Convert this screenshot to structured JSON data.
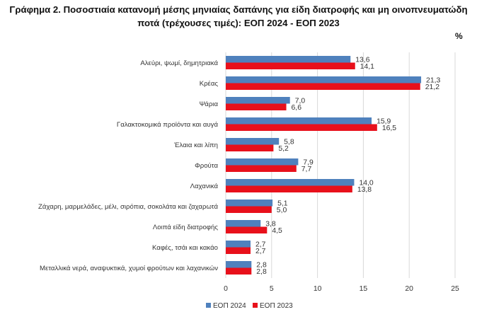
{
  "title_line1": "Γράφημα 2. Ποσοστιαία κατανομή μέσης μηνιαίας δαπάνης για είδη διατροφής και μη οινοπνευματώδη",
  "title_line2": "ποτά (τρέχουσες τιμές): ΕΟΠ 2024 - ΕΟΠ 2023",
  "unit": "%",
  "chart_data": {
    "type": "bar",
    "orientation": "horizontal",
    "title": "Γράφημα 2. Ποσοστιαία κατανομή μέσης μηνιαίας δαπάνης για είδη διατροφής και μη οινοπνευματώδη ποτά (τρέχουσες τιμές): ΕΟΠ 2024 - ΕΟΠ 2023",
    "xlabel": "",
    "ylabel": "",
    "unit": "%",
    "xlim": [
      0,
      25
    ],
    "xticks": [
      0,
      5,
      10,
      15,
      20,
      25
    ],
    "grid": true,
    "legend_position": "bottom",
    "categories": [
      "Αλεύρι, ψωμί, δημητριακά",
      "Κρέας",
      "Ψάρια",
      "Γαλακτοκομικά προϊόντα και αυγά",
      "Έλαια και λίπη",
      "Φρούτα",
      "Λαχανικά",
      "Ζάχαρη, μαρμελάδες, μέλι, σιρόπια, σοκολάτα και ζαχαρωτά",
      "Λοιπά είδη διατροφής",
      "Καφές, τσάι και κακάο",
      "Μεταλλικά νερά, αναψυκτικά, χυμοί φρούτων και λαχανικών"
    ],
    "series": [
      {
        "name": "ΕΟΠ 2024",
        "color": "#4f81bd",
        "values": [
          13.6,
          21.3,
          7.0,
          15.9,
          5.8,
          7.9,
          14.0,
          5.1,
          3.8,
          2.7,
          2.8
        ],
        "value_labels": [
          "13,6",
          "21,3",
          "7,0",
          "15,9",
          "5,8",
          "7,9",
          "14,0",
          "5,1",
          "3,8",
          "2,7",
          "2,8"
        ]
      },
      {
        "name": "ΕΟΠ 2023",
        "color": "#e8101b",
        "values": [
          14.1,
          21.2,
          6.6,
          16.5,
          5.2,
          7.7,
          13.8,
          5.0,
          4.5,
          2.7,
          2.8
        ],
        "value_labels": [
          "14,1",
          "21,2",
          "6,6",
          "16,5",
          "5,2",
          "7,7",
          "13,8",
          "5,0",
          "4,5",
          "2,7",
          "2,8"
        ]
      }
    ]
  },
  "colors": {
    "grid": "#d9d9d9",
    "text": "#333333"
  }
}
